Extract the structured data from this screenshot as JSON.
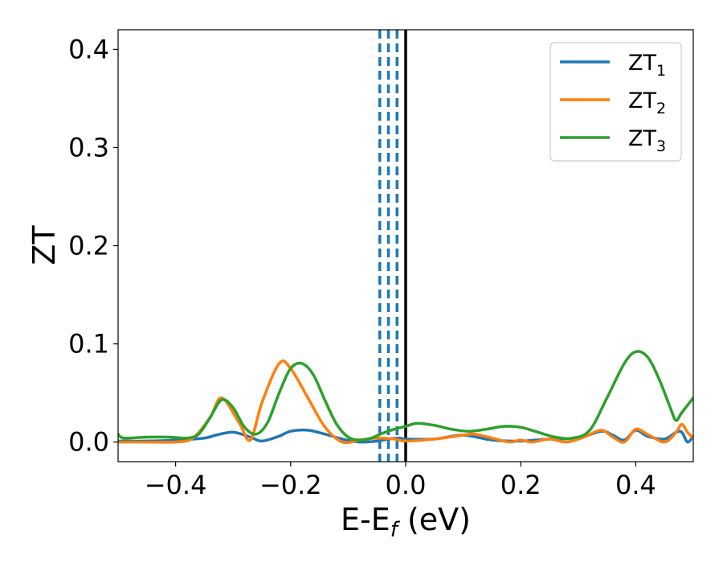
{
  "chart_data": {
    "type": "line",
    "xlabel": "E-E",
    "xlabel_sub": "f",
    "xlabel_unit": " (eV)",
    "ylabel": "ZT",
    "xlim": [
      -0.5,
      0.5
    ],
    "ylim": [
      -0.02,
      0.42
    ],
    "xticks": [
      -0.4,
      -0.2,
      0.0,
      0.2,
      0.4
    ],
    "xtick_labels": [
      "−0.4",
      "−0.2",
      "0.0",
      "0.2",
      "0.4"
    ],
    "yticks": [
      0.0,
      0.1,
      0.2,
      0.3,
      0.4
    ],
    "ytick_labels": [
      "0.0",
      "0.1",
      "0.2",
      "0.3",
      "0.4"
    ],
    "grid": false,
    "legend_position": "top-right",
    "vlines": {
      "solid": {
        "x": 0.0,
        "color": "#000000"
      },
      "dashed": {
        "x": [
          -0.045,
          -0.03,
          -0.015
        ],
        "color": "#1f77b4"
      }
    },
    "series": [
      {
        "name": "ZT",
        "sub": "1",
        "color": "#1f77b4",
        "x": [
          -0.5,
          -0.45,
          -0.4,
          -0.35,
          -0.33,
          -0.3,
          -0.27,
          -0.25,
          -0.22,
          -0.2,
          -0.17,
          -0.14,
          -0.11,
          -0.08,
          -0.05,
          -0.03,
          -0.01,
          0.0,
          0.05,
          0.1,
          0.15,
          0.2,
          0.25,
          0.3,
          0.34,
          0.36,
          0.38,
          0.4,
          0.42,
          0.45,
          0.47,
          0.48,
          0.49,
          0.5
        ],
        "y": [
          0.001,
          0.001,
          0.002,
          0.004,
          0.007,
          0.01,
          0.005,
          0.001,
          0.006,
          0.011,
          0.012,
          0.008,
          0.003,
          0.0,
          0.001,
          0.003,
          0.004,
          0.003,
          0.003,
          0.007,
          0.002,
          0.001,
          0.003,
          0.004,
          0.011,
          0.007,
          0.002,
          0.012,
          0.006,
          0.003,
          0.01,
          0.01,
          0.0,
          0.006
        ]
      },
      {
        "name": "ZT",
        "sub": "2",
        "color": "#ff7f0e",
        "x": [
          -0.5,
          -0.45,
          -0.4,
          -0.37,
          -0.34,
          -0.32,
          -0.29,
          -0.27,
          -0.25,
          -0.22,
          -0.2,
          -0.17,
          -0.14,
          -0.11,
          -0.08,
          -0.05,
          -0.02,
          0.0,
          0.05,
          0.1,
          0.12,
          0.15,
          0.18,
          0.2,
          0.22,
          0.25,
          0.28,
          0.31,
          0.34,
          0.36,
          0.38,
          0.4,
          0.42,
          0.45,
          0.47,
          0.48,
          0.49,
          0.5
        ],
        "y": [
          0.0,
          0.0,
          0.0,
          0.004,
          0.025,
          0.045,
          0.02,
          0.002,
          0.04,
          0.08,
          0.075,
          0.045,
          0.015,
          0.0,
          0.002,
          0.004,
          0.003,
          0.001,
          0.003,
          0.007,
          0.008,
          0.004,
          0.0,
          0.002,
          0.0,
          0.003,
          0.0,
          0.005,
          0.012,
          0.005,
          0.0,
          0.013,
          0.008,
          0.0,
          0.01,
          0.018,
          0.01,
          0.004
        ]
      },
      {
        "name": "ZT",
        "sub": "3",
        "color": "#2ca02c",
        "x": [
          -0.5,
          -0.49,
          -0.45,
          -0.41,
          -0.38,
          -0.36,
          -0.34,
          -0.32,
          -0.3,
          -0.28,
          -0.26,
          -0.24,
          -0.22,
          -0.2,
          -0.18,
          -0.16,
          -0.14,
          -0.12,
          -0.1,
          -0.08,
          -0.06,
          -0.04,
          -0.02,
          0.0,
          0.02,
          0.05,
          0.08,
          0.11,
          0.14,
          0.17,
          0.2,
          0.23,
          0.26,
          0.29,
          0.32,
          0.35,
          0.38,
          0.4,
          0.42,
          0.44,
          0.46,
          0.47,
          0.48,
          0.5
        ],
        "y": [
          0.008,
          0.004,
          0.005,
          0.005,
          0.004,
          0.008,
          0.025,
          0.043,
          0.035,
          0.015,
          0.008,
          0.02,
          0.05,
          0.075,
          0.08,
          0.068,
          0.042,
          0.018,
          0.005,
          0.002,
          0.004,
          0.009,
          0.013,
          0.016,
          0.019,
          0.017,
          0.013,
          0.011,
          0.013,
          0.016,
          0.015,
          0.01,
          0.005,
          0.004,
          0.012,
          0.045,
          0.08,
          0.092,
          0.087,
          0.065,
          0.035,
          0.022,
          0.03,
          0.045
        ]
      }
    ]
  }
}
